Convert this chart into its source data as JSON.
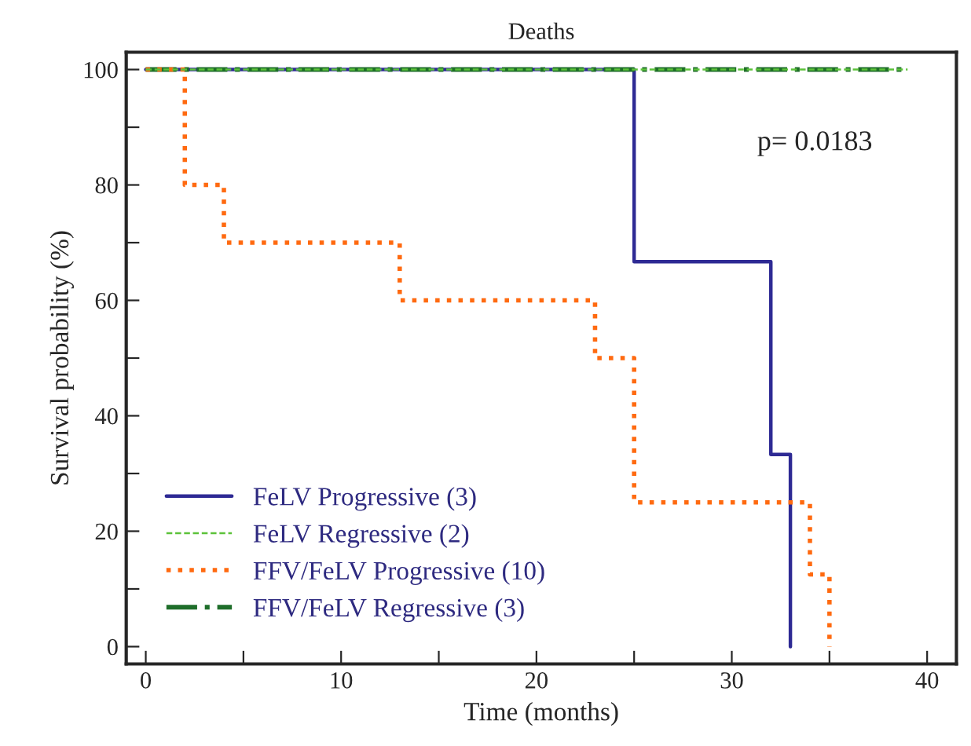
{
  "chart_data": {
    "type": "step",
    "title": "Deaths",
    "xlabel": "Time (months)",
    "ylabel": "Survival probability (%)",
    "xlim": [
      -1,
      41.5
    ],
    "ylim": [
      -3,
      103
    ],
    "xticks": [
      0,
      {
        "value": 5,
        "label": null
      },
      10,
      {
        "value": 15,
        "label": null
      },
      20,
      {
        "value": 25,
        "label": null
      },
      30,
      {
        "value": 35,
        "label": null
      },
      40
    ],
    "yticks": [
      0,
      {
        "value": 10,
        "label": null
      },
      20,
      {
        "value": 30,
        "label": null
      },
      40,
      {
        "value": 50,
        "label": null
      },
      60,
      {
        "value": 70,
        "label": null
      },
      80,
      {
        "value": 90,
        "label": null
      },
      100
    ],
    "grid": false,
    "legend": "bottom left",
    "annotations": [
      "p= 0.0183"
    ],
    "series": [
      {
        "name": "FeLV Progressive (3)",
        "color": "#2e2a94",
        "line_style": "solid",
        "x": [
          0,
          25,
          32,
          33
        ],
        "values": [
          100,
          66.7,
          33.3,
          0
        ]
      },
      {
        "name": "FeLV Regressive (2)",
        "color": "#5cc23a",
        "line_style": "dashed",
        "x": [
          0,
          39
        ],
        "values": [
          100,
          100
        ]
      },
      {
        "name": "FFV/FeLV Progressive (10)",
        "color": "#ff6a10",
        "line_style": "dotted",
        "x": [
          0,
          2,
          4,
          13,
          23,
          25,
          34,
          35
        ],
        "values": [
          100,
          80,
          70,
          60,
          50,
          25,
          12.5,
          0
        ]
      },
      {
        "name": "FFV/FeLV Regressive (3)",
        "color": "#1f6e2a",
        "line_style": "dashdot",
        "x": [
          0,
          39
        ],
        "values": [
          100,
          100
        ]
      }
    ]
  }
}
